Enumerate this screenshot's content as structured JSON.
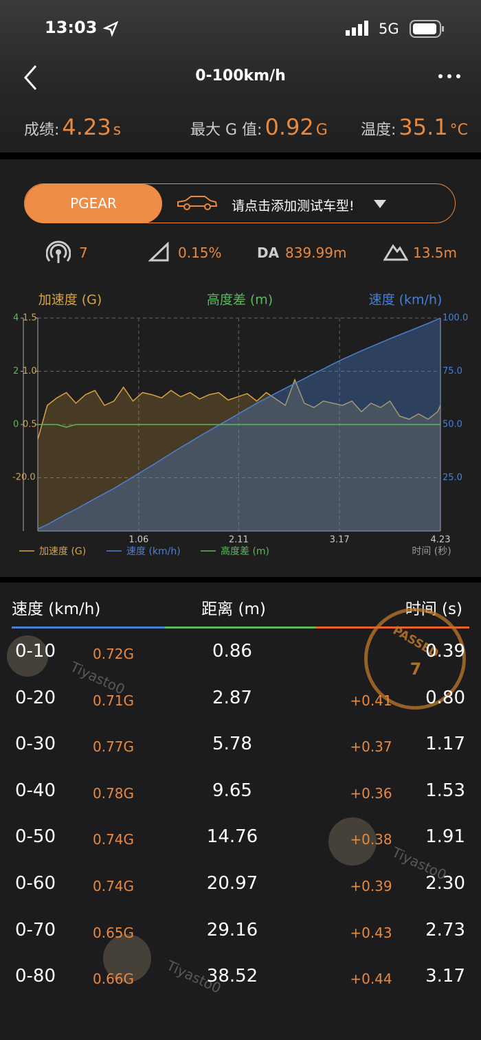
{
  "status_bar": {
    "time": "13:03",
    "network": "5G"
  },
  "header": {
    "title": "0-100km/h"
  },
  "stats": [
    {
      "label": "成绩:",
      "value": "4.23",
      "unit": "s"
    },
    {
      "label": "最大 G 值:",
      "value": "0.92",
      "unit": "G"
    },
    {
      "label": "温度:",
      "value": "35.1",
      "unit": "°C"
    }
  ],
  "selector": {
    "brand": "PGEAR",
    "prompt": "请点击添加测试车型!"
  },
  "metrics": {
    "satellites": "7",
    "slope": "0.15%",
    "da_label": "DA",
    "da_value": "839.99m",
    "altitude": "13.5m"
  },
  "chart_data": {
    "type": "line",
    "xlabel": "时间 (秒)",
    "x": [
      0,
      0.1,
      0.2,
      0.3,
      0.4,
      0.5,
      0.6,
      0.7,
      0.8,
      0.9,
      1.0,
      1.1,
      1.2,
      1.3,
      1.4,
      1.5,
      1.6,
      1.7,
      1.8,
      1.9,
      2.0,
      2.1,
      2.2,
      2.3,
      2.4,
      2.5,
      2.6,
      2.7,
      2.8,
      2.9,
      3.0,
      3.1,
      3.2,
      3.3,
      3.4,
      3.5,
      3.6,
      3.7,
      3.8,
      3.9,
      4.0,
      4.1,
      4.2,
      4.23
    ],
    "xlim": [
      0,
      4.23
    ],
    "xticks": [
      1.06,
      2.11,
      3.17,
      4.23
    ],
    "ylim": [
      -0.5,
      1.5
    ],
    "yticks": [
      1.5,
      {
        "value": 1,
        "label": "1.0"
      },
      0.5
    ],
    "y2lim": [
      0,
      100
    ],
    "y2ticks": [
      {
        "value": 100,
        "label": "100.0"
      },
      {
        "value": 75,
        "label": "75.0"
      },
      {
        "value": 50,
        "label": "50.0"
      },
      {
        "value": 25,
        "label": "25.0"
      }
    ],
    "y3lim": [
      -4,
      4
    ],
    "y3ticks": [
      4,
      2,
      0
    ],
    "extra_axis_label": "-20.0",
    "grid": true,
    "series": [
      {
        "name": "加速度 (G)",
        "color": "#d9a441",
        "axis": "y",
        "values": [
          0.36,
          0.68,
          0.75,
          0.8,
          0.7,
          0.78,
          0.82,
          0.68,
          0.72,
          0.85,
          0.72,
          0.8,
          0.78,
          0.75,
          0.82,
          0.76,
          0.8,
          0.74,
          0.78,
          0.8,
          0.73,
          0.76,
          0.79,
          0.72,
          0.8,
          0.74,
          0.68,
          0.92,
          0.7,
          0.66,
          0.72,
          0.7,
          0.68,
          0.72,
          0.62,
          0.7,
          0.66,
          0.72,
          0.58,
          0.55,
          0.6,
          0.55,
          0.62,
          0.68
        ]
      },
      {
        "name": "速度 (km/h)",
        "color": "#4a80d4",
        "axis": "y2",
        "values": [
          1,
          3,
          5.5,
          8,
          10.2,
          12.7,
          15.2,
          17.6,
          20,
          22.7,
          25.4,
          28.1,
          30.8,
          33.6,
          36.4,
          39.2,
          41.8,
          44.5,
          47.1,
          49.7,
          52.2,
          54.8,
          57.4,
          60,
          62.3,
          64.7,
          67,
          69.3,
          71.6,
          73.9,
          76.1,
          78.4,
          80.6,
          82.6,
          84.6,
          86.5,
          88.4,
          90.3,
          92.1,
          93.9,
          95.7,
          97.5,
          99.4,
          100
        ]
      },
      {
        "name": "高度差 (m)",
        "color": "#5cb85c",
        "axis": "y3",
        "values": [
          0,
          0,
          0,
          -0.1,
          0,
          0,
          0,
          0,
          0,
          0,
          0,
          0,
          0,
          0,
          0,
          0,
          0,
          0,
          0,
          0,
          0,
          0,
          0,
          0,
          0,
          0,
          0,
          0,
          0,
          0,
          0,
          0,
          0,
          0,
          0,
          0,
          0,
          0,
          0,
          0,
          0,
          0,
          0,
          0
        ]
      }
    ]
  },
  "table": {
    "headers": [
      "速度 (km/h)",
      "距离 (m)",
      "时间 (s)"
    ],
    "rows": [
      {
        "range": "0-10",
        "g": "0.72G",
        "distance": "0.86",
        "time": "0.39"
      },
      {
        "range": "0-20",
        "g": "0.71G",
        "distance": "2.87",
        "delta": "+0.41",
        "time": "0.80"
      },
      {
        "range": "0-30",
        "g": "0.77G",
        "distance": "5.78",
        "delta": "+0.37",
        "time": "1.17"
      },
      {
        "range": "0-40",
        "g": "0.78G",
        "distance": "9.65",
        "delta": "+0.36",
        "time": "1.53"
      },
      {
        "range": "0-50",
        "g": "0.74G",
        "distance": "14.76",
        "delta": "+0.38",
        "time": "1.91"
      },
      {
        "range": "0-60",
        "g": "0.74G",
        "distance": "20.97",
        "delta": "+0.39",
        "time": "2.30"
      },
      {
        "range": "0-70",
        "g": "0.65G",
        "distance": "29.16",
        "delta": "+0.43",
        "time": "2.73"
      },
      {
        "range": "0-80",
        "g": "0.66G",
        "distance": "38.52",
        "delta": "+0.44",
        "time": "3.17"
      }
    ]
  },
  "watermark": "Tiyasto0",
  "stamp": {
    "text": "PASSED",
    "number": "7"
  }
}
